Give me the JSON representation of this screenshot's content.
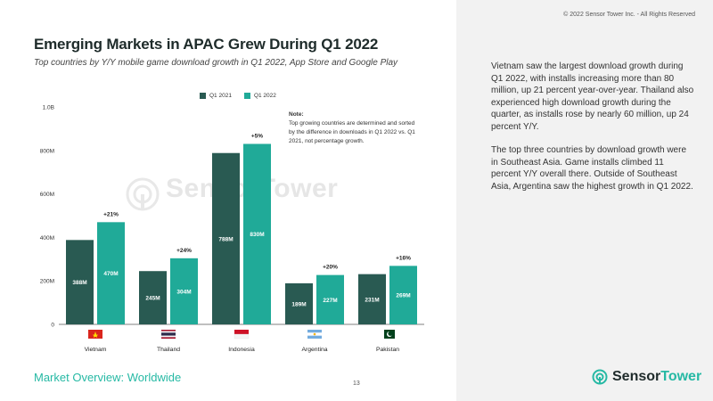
{
  "header": {
    "copyright": "© 2022 Sensor Tower Inc. - All Rights Reserved",
    "title": "Emerging Markets in APAC Grew During Q1 2022",
    "subtitle": "Top countries by Y/Y mobile game download growth in Q1 2022, App Store and Google Play"
  },
  "legend": {
    "q1_2021": "Q1 2021",
    "q1_2022": "Q1 2022"
  },
  "note": {
    "title": "Note:",
    "text": "Top growing countries are determined and sorted by the difference in downloads in Q1 2022 vs. Q1 2021, not percentage growth."
  },
  "watermark": "SensorTower",
  "colors": {
    "q1_2021": "#295a52",
    "q1_2022": "#20aa98",
    "accent": "#26b9a4",
    "panel": "#f2f2f2"
  },
  "chart_data": {
    "type": "bar",
    "categories": [
      "Vietnam",
      "Thailand",
      "Indonesia",
      "Argentina",
      "Pakistan"
    ],
    "series": [
      {
        "name": "Q1 2021",
        "values": [
          388000000,
          245000000,
          788000000,
          189000000,
          231000000
        ],
        "labels": [
          "388M",
          "245M",
          "788M",
          "189M",
          "231M"
        ]
      },
      {
        "name": "Q1 2022",
        "values": [
          470000000,
          304000000,
          830000000,
          227000000,
          269000000
        ],
        "labels": [
          "470M",
          "304M",
          "830M",
          "227M",
          "269M"
        ]
      }
    ],
    "growth_labels": [
      "+21%",
      "+24%",
      "+5%",
      "+20%",
      "+16%"
    ],
    "yticks": [
      {
        "value": 0,
        "label": "0"
      },
      {
        "value": 200000000,
        "label": "200M"
      },
      {
        "value": 400000000,
        "label": "400M"
      },
      {
        "value": 600000000,
        "label": "600M"
      },
      {
        "value": 800000000,
        "label": "800M"
      },
      {
        "value": 1000000000,
        "label": "1.0B"
      }
    ],
    "ylim": [
      0,
      1000000000
    ],
    "flags": [
      "vietnam-flag-icon",
      "thailand-flag-icon",
      "indonesia-flag-icon",
      "argentina-flag-icon",
      "pakistan-flag-icon"
    ],
    "legend_position": "top",
    "grid": false
  },
  "commentary": {
    "p1": "Vietnam saw the largest download growth during Q1 2022, with installs increasing more than 80 million, up 21 percent year-over-year. Thailand also experienced high download growth during the quarter, as installs rose by nearly 60 million, up 24 percent Y/Y.",
    "p2": "The top three countries by download growth were in Southeast Asia. Game installs climbed 11 percent Y/Y overall there. Outside of Southeast Asia, Argentina saw the highest growth in Q1 2022."
  },
  "footer": {
    "section": "Market Overview: Worldwide",
    "page": "13",
    "brand_part1": "Sensor",
    "brand_part2": "Tower"
  }
}
